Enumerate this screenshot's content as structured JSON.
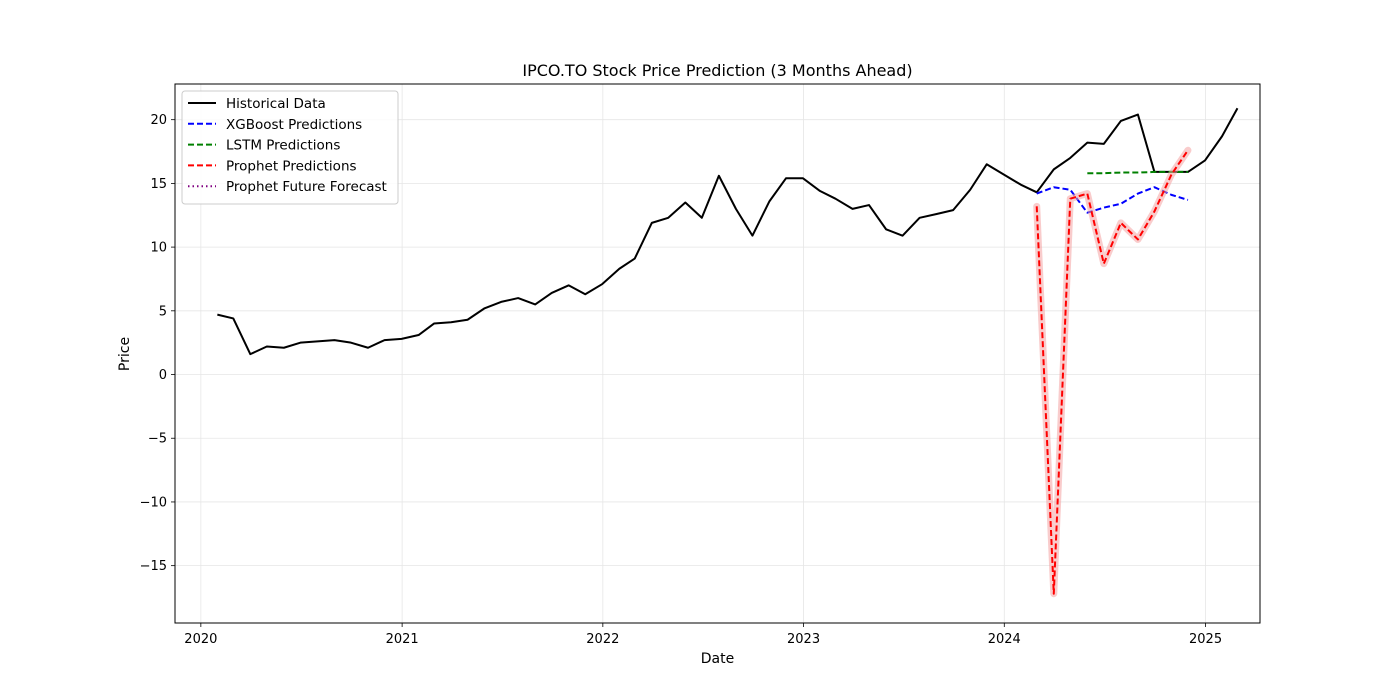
{
  "chart_data": {
    "type": "line",
    "title": "IPCO.TO Stock Price Prediction (3 Months Ahead)",
    "xlabel": "Date",
    "ylabel": "Price",
    "xlim": [
      "2019-11-15",
      "2025-04-10"
    ],
    "ylim": [
      -19.5,
      22.8
    ],
    "x_ticks": [
      "2020-01-01",
      "2021-01-01",
      "2022-01-01",
      "2023-01-01",
      "2024-01-01",
      "2025-01-01"
    ],
    "x_tick_labels": [
      "2020",
      "2021",
      "2022",
      "2023",
      "2024",
      "2025"
    ],
    "y_ticks": [
      20,
      15,
      10,
      5,
      0,
      -5,
      -10,
      -15
    ],
    "y_tick_labels": [
      "20",
      "15",
      "10",
      "5",
      "0",
      "−5",
      "−10",
      "−15"
    ],
    "grid": true,
    "legend_position": "top-left",
    "legend": [
      "Historical Data",
      "XGBoost Predictions",
      "LSTM Predictions",
      "Prophet Predictions",
      "Prophet Future Forecast"
    ],
    "series": [
      {
        "name": "Historical Data",
        "color": "#000000",
        "style": "solid",
        "points": [
          [
            "2020-01-31",
            4.7
          ],
          [
            "2020-02-29",
            4.4
          ],
          [
            "2020-03-31",
            1.6
          ],
          [
            "2020-04-30",
            2.2
          ],
          [
            "2020-05-31",
            2.1
          ],
          [
            "2020-06-30",
            2.5
          ],
          [
            "2020-07-31",
            2.6
          ],
          [
            "2020-08-31",
            2.7
          ],
          [
            "2020-09-30",
            2.5
          ],
          [
            "2020-10-31",
            2.1
          ],
          [
            "2020-11-30",
            2.7
          ],
          [
            "2020-12-31",
            2.8
          ],
          [
            "2021-01-31",
            3.1
          ],
          [
            "2021-02-28",
            4.0
          ],
          [
            "2021-03-31",
            4.1
          ],
          [
            "2021-04-30",
            4.3
          ],
          [
            "2021-05-31",
            5.2
          ],
          [
            "2021-06-30",
            5.7
          ],
          [
            "2021-07-31",
            6.0
          ],
          [
            "2021-08-31",
            5.5
          ],
          [
            "2021-09-30",
            6.4
          ],
          [
            "2021-10-31",
            7.0
          ],
          [
            "2021-11-30",
            6.3
          ],
          [
            "2021-12-31",
            7.1
          ],
          [
            "2022-01-31",
            8.3
          ],
          [
            "2022-02-28",
            9.1
          ],
          [
            "2022-03-31",
            11.9
          ],
          [
            "2022-04-30",
            12.3
          ],
          [
            "2022-05-31",
            13.5
          ],
          [
            "2022-06-30",
            12.3
          ],
          [
            "2022-07-31",
            15.6
          ],
          [
            "2022-08-31",
            13.0
          ],
          [
            "2022-09-30",
            10.9
          ],
          [
            "2022-10-31",
            13.6
          ],
          [
            "2022-11-30",
            15.4
          ],
          [
            "2022-12-31",
            15.4
          ],
          [
            "2023-01-31",
            14.4
          ],
          [
            "2023-02-28",
            13.8
          ],
          [
            "2023-03-31",
            13.0
          ],
          [
            "2023-04-30",
            13.3
          ],
          [
            "2023-05-31",
            11.4
          ],
          [
            "2023-06-30",
            10.9
          ],
          [
            "2023-07-31",
            12.3
          ],
          [
            "2023-08-31",
            12.6
          ],
          [
            "2023-09-30",
            12.9
          ],
          [
            "2023-10-31",
            14.5
          ],
          [
            "2023-11-30",
            16.5
          ],
          [
            "2023-12-31",
            15.7
          ],
          [
            "2024-01-31",
            14.9
          ],
          [
            "2024-02-29",
            14.3
          ],
          [
            "2024-03-31",
            16.1
          ],
          [
            "2024-04-30",
            17.0
          ],
          [
            "2024-05-31",
            18.2
          ],
          [
            "2024-06-30",
            18.1
          ],
          [
            "2024-07-31",
            19.9
          ],
          [
            "2024-08-31",
            20.4
          ],
          [
            "2024-09-30",
            15.9
          ],
          [
            "2024-10-31",
            15.9
          ],
          [
            "2024-11-30",
            15.9
          ],
          [
            "2024-12-31",
            16.8
          ],
          [
            "2025-01-31",
            18.7
          ],
          [
            "2025-02-28",
            20.9
          ]
        ]
      },
      {
        "name": "XGBoost Predictions",
        "color": "#0000ff",
        "style": "dashed",
        "points": [
          [
            "2024-02-29",
            14.2
          ],
          [
            "2024-03-31",
            14.7
          ],
          [
            "2024-04-30",
            14.5
          ],
          [
            "2024-05-31",
            12.7
          ],
          [
            "2024-06-30",
            13.1
          ],
          [
            "2024-07-31",
            13.4
          ],
          [
            "2024-08-31",
            14.2
          ],
          [
            "2024-09-30",
            14.7
          ],
          [
            "2024-10-31",
            14.1
          ],
          [
            "2024-11-30",
            13.7
          ]
        ]
      },
      {
        "name": "LSTM Predictions",
        "color": "#008000",
        "style": "dashed",
        "points": [
          [
            "2024-05-31",
            15.8
          ],
          [
            "2024-06-30",
            15.8
          ],
          [
            "2024-07-31",
            15.85
          ],
          [
            "2024-08-31",
            15.85
          ],
          [
            "2024-09-30",
            15.9
          ],
          [
            "2024-10-31",
            15.9
          ],
          [
            "2024-11-30",
            15.9
          ]
        ]
      },
      {
        "name": "Prophet Predictions",
        "color": "#ff0000",
        "style": "dashed",
        "band_color": "#f4a3a3",
        "points": [
          [
            "2024-02-29",
            13.2
          ],
          [
            "2024-03-31",
            -17.2
          ],
          [
            "2024-04-30",
            13.8
          ],
          [
            "2024-05-31",
            14.2
          ],
          [
            "2024-06-30",
            8.7
          ],
          [
            "2024-07-31",
            11.9
          ],
          [
            "2024-08-31",
            10.6
          ],
          [
            "2024-09-30",
            12.8
          ],
          [
            "2024-10-31",
            15.7
          ],
          [
            "2024-11-30",
            17.6
          ]
        ]
      },
      {
        "name": "Prophet Future Forecast",
        "color": "#800080",
        "style": "dotted",
        "points": []
      }
    ]
  }
}
